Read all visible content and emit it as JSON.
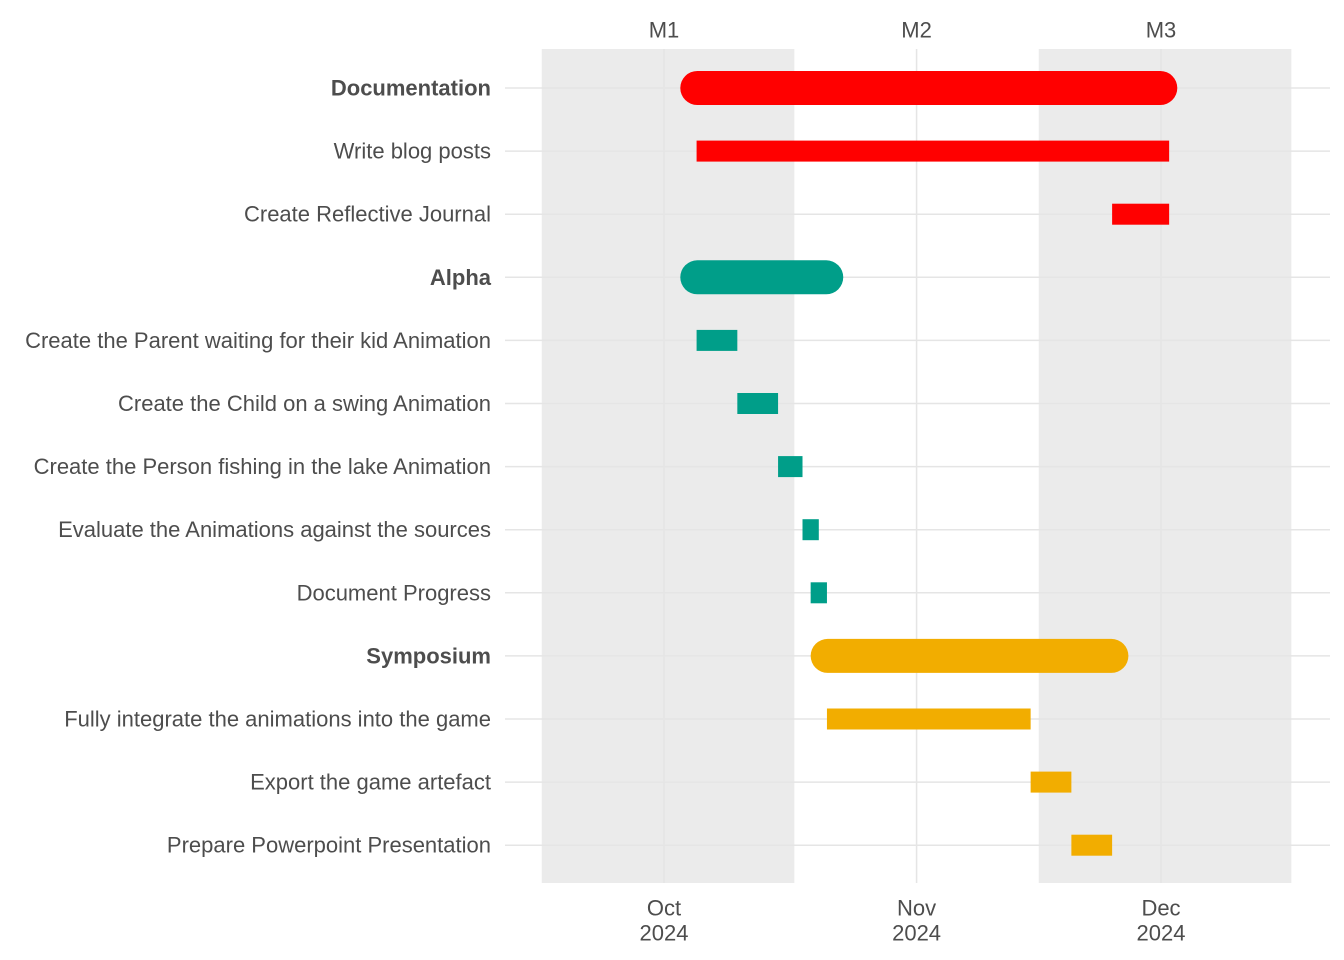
{
  "chart_data": {
    "type": "gantt",
    "x_axis": {
      "ticks": [
        {
          "date": "2024-10-01",
          "month": "Oct",
          "year": "2024"
        },
        {
          "date": "2024-11-01",
          "month": "Nov",
          "year": "2024"
        },
        {
          "date": "2024-12-01",
          "month": "Dec",
          "year": "2024"
        }
      ],
      "range": [
        "2024-09-16",
        "2024-12-17"
      ]
    },
    "shaded_periods": [
      {
        "start": "2024-09-16",
        "end": "2024-10-17"
      },
      {
        "start": "2024-11-16",
        "end": "2024-12-17"
      }
    ],
    "milestones": [
      {
        "label": "M1",
        "date": "2024-10-01"
      },
      {
        "label": "M2",
        "date": "2024-11-01"
      },
      {
        "label": "M3",
        "date": "2024-12-01"
      }
    ],
    "tasks": [
      {
        "label": "Documentation",
        "start": "2024-10-03",
        "end": "2024-12-03",
        "group": "Documentation",
        "summary": true
      },
      {
        "label": "Write blog posts",
        "start": "2024-10-05",
        "end": "2024-12-02",
        "group": "Documentation",
        "summary": false
      },
      {
        "label": "Create Reflective Journal",
        "start": "2024-11-25",
        "end": "2024-12-02",
        "group": "Documentation",
        "summary": false
      },
      {
        "label": "Alpha",
        "start": "2024-10-03",
        "end": "2024-10-23",
        "group": "Alpha",
        "summary": true
      },
      {
        "label": "Create the Parent waiting for their kid Animation",
        "start": "2024-10-05",
        "end": "2024-10-10",
        "group": "Alpha",
        "summary": false
      },
      {
        "label": "Create the Child on a swing Animation",
        "start": "2024-10-10",
        "end": "2024-10-15",
        "group": "Alpha",
        "summary": false
      },
      {
        "label": "Create the Person fishing in the lake Animation",
        "start": "2024-10-15",
        "end": "2024-10-18",
        "group": "Alpha",
        "summary": false
      },
      {
        "label": "Evaluate the Animations against the sources",
        "start": "2024-10-18",
        "end": "2024-10-20",
        "group": "Alpha",
        "summary": false
      },
      {
        "label": "Document Progress",
        "start": "2024-10-19",
        "end": "2024-10-21",
        "group": "Alpha",
        "summary": false
      },
      {
        "label": "Symposium",
        "start": "2024-10-19",
        "end": "2024-11-27",
        "group": "Symposium",
        "summary": true
      },
      {
        "label": "Fully integrate the animations into the game",
        "start": "2024-10-21",
        "end": "2024-11-15",
        "group": "Symposium",
        "summary": false
      },
      {
        "label": "Export the game artefact",
        "start": "2024-11-15",
        "end": "2024-11-20",
        "group": "Symposium",
        "summary": false
      },
      {
        "label": "Prepare Powerpoint Presentation",
        "start": "2024-11-20",
        "end": "2024-11-25",
        "group": "Symposium",
        "summary": false
      }
    ],
    "group_colors": {
      "Documentation": "#FF0000",
      "Alpha": "#009E89",
      "Symposium": "#F2AD00"
    },
    "shade_color": "#EBEBEB",
    "grid_color": "#E5E5E5",
    "grid": true,
    "legend": "none"
  }
}
